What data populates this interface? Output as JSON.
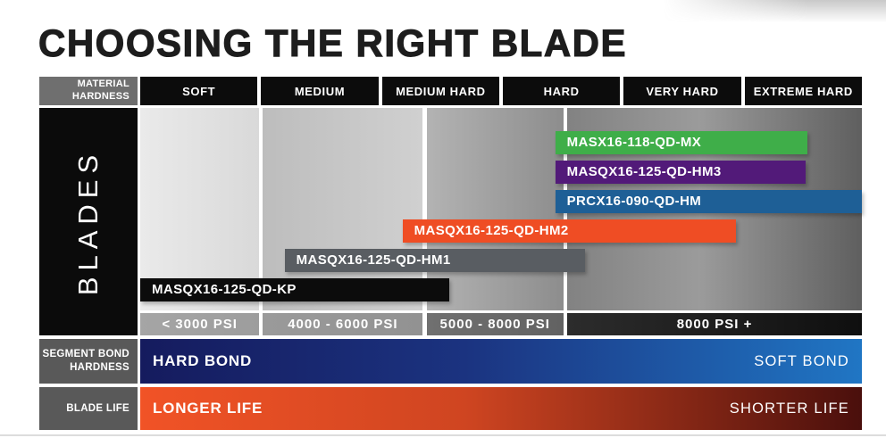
{
  "title": "CHOOSING THE RIGHT BLADE",
  "palette": {
    "header_cell_bg": "#0c0c0c",
    "corner_cell_bg": "#6f6f6f",
    "sidebar_bg": "#0b0b0b",
    "row_label_bg": "#595959",
    "page_bg": "#ffffff"
  },
  "chart_data": {
    "type": "bar",
    "orientation": "horizontal-range",
    "title": "CHOOSING THE RIGHT BLADE",
    "y_axis_label": "BLADES",
    "x_axis": {
      "label": "MATERIAL HARDNESS",
      "label_lines": [
        "MATERIAL",
        "HARDNESS"
      ],
      "categories": [
        "SOFT",
        "MEDIUM",
        "MEDIUM HARD",
        "HARD",
        "VERY HARD",
        "EXTREME HARD"
      ],
      "range": [
        0,
        6
      ],
      "grid": false
    },
    "series": [
      {
        "name": "MASX16-118-QD-MX",
        "color": "#3fae49",
        "hardness_span": [
          3.45,
          5.55
        ]
      },
      {
        "name": "MASQX16-125-QD-HM3",
        "color": "#521a79",
        "hardness_span": [
          3.45,
          5.53
        ]
      },
      {
        "name": "PRCX16-090-QD-HM",
        "color": "#1e5f96",
        "hardness_span": [
          3.45,
          6.0
        ]
      },
      {
        "name": "MASQX16-125-QD-HM2",
        "color": "#ef4d24",
        "hardness_span": [
          2.18,
          4.95
        ]
      },
      {
        "name": "MASQX16-125-QD-HM1",
        "color": "#595d62",
        "hardness_span": [
          1.2,
          3.7
        ]
      },
      {
        "name": "MASQX16-125-QD-KP",
        "color": "#0c0c0c",
        "hardness_span": [
          0.0,
          2.57
        ]
      }
    ],
    "psi_segments": [
      {
        "label": "< 3000 PSI",
        "span": [
          0.0,
          0.99
        ],
        "cell_colors": [
          "#a5a5a5",
          "#9d9d9d"
        ],
        "zone_colors": [
          "#eaeaea",
          "#d9d9d9"
        ]
      },
      {
        "label": "4000 - 6000 PSI",
        "span": [
          1.02,
          2.35
        ],
        "cell_colors": [
          "#9a9a9a",
          "#929292"
        ],
        "zone_colors": [
          "#bdbdbd",
          "#d0d0d0"
        ]
      },
      {
        "label": "5000 - 8000 PSI",
        "span": [
          2.38,
          3.52
        ],
        "cell_colors": [
          "#707070",
          "#626262"
        ],
        "zone_colors": [
          "#b3b3b3",
          "#8d8d8d"
        ]
      },
      {
        "label": "8000 PSI +",
        "span": [
          3.55,
          6.0
        ],
        "cell_colors": [
          "#2c2c2c",
          "#0f0f0f"
        ],
        "zone_colors": [
          "#828282",
          "#9b9b9b",
          "#5f5f5f"
        ]
      }
    ],
    "footer_scales": [
      {
        "label_lines": [
          "SEGMENT BOND",
          "HARDNESS"
        ],
        "left_label": "HARD BOND",
        "right_label": "SOFT BOND",
        "gradient": [
          "#151b5e",
          "#1b3380",
          "#2076c4"
        ]
      },
      {
        "label_lines": [
          "BLADE LIFE"
        ],
        "left_label": "LONGER LIFE",
        "right_label": "SHORTER LIFE",
        "gradient": [
          "#f15326",
          "#cf4521",
          "#4a0f0c"
        ]
      }
    ]
  }
}
